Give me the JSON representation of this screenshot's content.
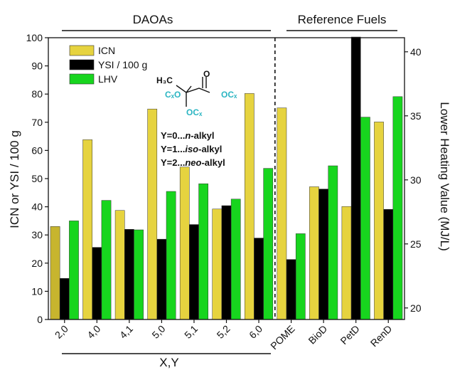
{
  "chart_data": {
    "type": "bar",
    "categories": [
      "2,0",
      "4,0",
      "4,1",
      "5,0",
      "5,1",
      "5,2",
      "6,0",
      "POME",
      "BioD",
      "PetD",
      "RenD"
    ],
    "series": [
      {
        "name": "ICN",
        "axis": "left",
        "color": "#e6d33f",
        "values": [
          33,
          63.8,
          38.7,
          74.7,
          54.1,
          39.2,
          80.2,
          75.1,
          47.1,
          40.1,
          70.1
        ]
      },
      {
        "name": "YSI / 100 g",
        "axis": "left",
        "color": "#000000",
        "values": [
          14.6,
          25.6,
          32.0,
          28.5,
          33.7,
          40.4,
          28.9,
          21.3,
          46.3,
          101.0,
          39.1
        ]
      },
      {
        "name": "LHV",
        "axis": "right",
        "color": "#17d51e",
        "values": [
          26.8,
          28.4,
          26.1,
          29.1,
          29.7,
          28.5,
          30.9,
          25.8,
          31.1,
          34.9,
          36.5
        ]
      }
    ],
    "first_bar_color": "#c7b52e",
    "ylabel": "ICN or YSI / 100 g",
    "ylim": [
      0,
      100
    ],
    "yticks": [
      "0",
      "10",
      "20",
      "30",
      "40",
      "50",
      "60",
      "70",
      "80",
      "90",
      "100"
    ],
    "y2label": "Lower Heating Value (MJ/L)",
    "y2lim": [
      19.1,
      41.1
    ],
    "y2ticks": [
      "20",
      "25",
      "30",
      "35",
      "40"
    ],
    "xlabel": "X,Y",
    "group_labels": [
      "DAOAs",
      "Reference Fuels"
    ],
    "legend_placement": "top-left",
    "grid": false
  },
  "annotation": {
    "mol": {
      "h3c": "H₃C",
      "o": "O",
      "left_group": "CₓO",
      "right_group": "OCₓ",
      "bottom_group": "OCₓ"
    },
    "lines": [
      {
        "prefix": "Y=0...",
        "em": "n",
        "suffix": "-alkyl"
      },
      {
        "prefix": "Y=1...",
        "em": "iso",
        "suffix": "-alkyl"
      },
      {
        "prefix": "Y=2...",
        "em": "neo",
        "suffix": "-alkyl"
      }
    ]
  }
}
